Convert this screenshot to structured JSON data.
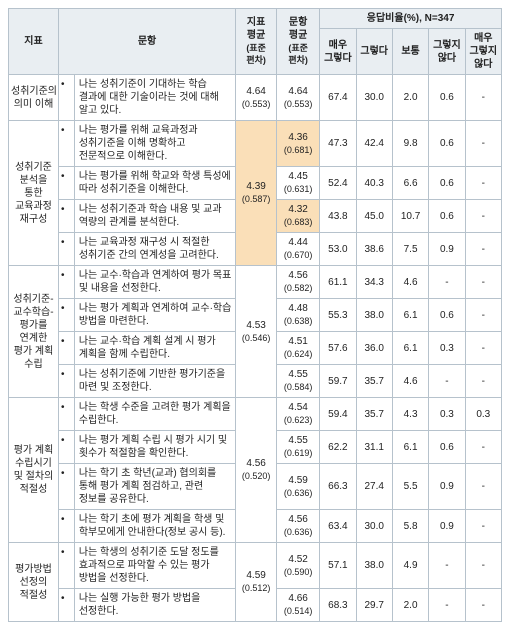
{
  "header": {
    "indicator": "지표",
    "question": "문항",
    "ind_avg_top": "지표",
    "ind_avg_mid": "평균",
    "q_avg_top": "문항",
    "q_avg_mid": "평균",
    "sd_note": "(표준 편차)",
    "resp_header": "응답비율(%), N=347",
    "r1": "매우 그렇다",
    "r2": "그렇다",
    "r3": "보통",
    "r4": "그렇지 않다",
    "r5": "매우 그렇지 않다"
  },
  "groups": [
    {
      "name": "성취기준의 의미 이해",
      "ind_avg": "4.64",
      "ind_sd": "(0.553)",
      "highlight": false,
      "rows": [
        {
          "q": "나는 성취기준이 기대하는 학습 결과에 대한 기술이라는 것에 대해 알고 있다.",
          "avg": "4.64",
          "sd": "(0.553)",
          "hl": false,
          "r": [
            "67.4",
            "30.0",
            "2.0",
            "0.6",
            "-"
          ]
        }
      ]
    },
    {
      "name": "성취기준 분석을 통한 교육과정 재구성",
      "ind_avg": "4.39",
      "ind_sd": "(0.587)",
      "highlight": true,
      "rows": [
        {
          "q": "나는 평가를 위해 교육과정과 성취기준을 이해 명확하고 전문적으로 이해한다.",
          "avg": "4.36",
          "sd": "(0.681)",
          "hl": true,
          "r": [
            "47.3",
            "42.4",
            "9.8",
            "0.6",
            "-"
          ]
        },
        {
          "q": "나는 평가를 위해 학교와 학생 특성에 따라 성취기준을 이해한다.",
          "avg": "4.45",
          "sd": "(0.631)",
          "hl": false,
          "r": [
            "52.4",
            "40.3",
            "6.6",
            "0.6",
            "-"
          ]
        },
        {
          "q": "나는 성취기준과 학습 내용 및 교과 역량의 관계를 분석한다.",
          "avg": "4.32",
          "sd": "(0.683)",
          "hl": true,
          "r": [
            "43.8",
            "45.0",
            "10.7",
            "0.6",
            "-"
          ]
        },
        {
          "q": "나는 교육과정 재구성 시 적절한 성취기준 간의 연계성을 고려한다.",
          "avg": "4.44",
          "sd": "(0.670)",
          "hl": false,
          "r": [
            "53.0",
            "38.6",
            "7.5",
            "0.9",
            "-"
          ]
        }
      ]
    },
    {
      "name": "성취기준-교수학습-평가를 연계한 평가 계획 수립",
      "ind_avg": "4.53",
      "ind_sd": "(0.546)",
      "highlight": false,
      "rows": [
        {
          "q": "나는 교수·학습과 연계하여 평가 목표 및 내용을 선정한다.",
          "avg": "4.56",
          "sd": "(0.582)",
          "hl": false,
          "r": [
            "61.1",
            "34.3",
            "4.6",
            "-",
            "-"
          ]
        },
        {
          "q": "나는 평가 계획과 연계하여 교수·학습 방법을 마련한다.",
          "avg": "4.48",
          "sd": "(0.638)",
          "hl": false,
          "r": [
            "55.3",
            "38.0",
            "6.1",
            "0.6",
            "-"
          ]
        },
        {
          "q": "나는 교수·학습 계획 설계 시 평가 계획을 함께 수립한다.",
          "avg": "4.51",
          "sd": "(0.624)",
          "hl": false,
          "r": [
            "57.6",
            "36.0",
            "6.1",
            "0.3",
            "-"
          ]
        },
        {
          "q": "나는 성취기준에 기반한 평가기준을 마련 및 조정한다.",
          "avg": "4.55",
          "sd": "(0.584)",
          "hl": false,
          "r": [
            "59.7",
            "35.7",
            "4.6",
            "-",
            "-"
          ]
        }
      ]
    },
    {
      "name": "평가 계획 수립시기 및 절차의 적절성",
      "ind_avg": "4.56",
      "ind_sd": "(0.520)",
      "highlight": false,
      "rows": [
        {
          "q": "나는 학생 수준을 고려한 평가 계획을 수립한다.",
          "avg": "4.54",
          "sd": "(0.623)",
          "hl": false,
          "r": [
            "59.4",
            "35.7",
            "4.3",
            "0.3",
            "0.3"
          ]
        },
        {
          "q": "나는 평가 계획 수립 시 평가 시기 및 횟수가 적절함을 확인한다.",
          "avg": "4.55",
          "sd": "(0.619)",
          "hl": false,
          "r": [
            "62.2",
            "31.1",
            "6.1",
            "0.6",
            "-"
          ]
        },
        {
          "q": "나는 학기 초 학년(교과) 협의회를 통해 평가 계획 점검하고, 관련 정보를 공유한다.",
          "avg": "4.59",
          "sd": "(0.636)",
          "hl": false,
          "r": [
            "66.3",
            "27.4",
            "5.5",
            "0.9",
            "-"
          ]
        },
        {
          "q": "나는 학기 초에 평가 계획을 학생 및 학부모에게 안내한다(정보 공시 등).",
          "avg": "4.56",
          "sd": "(0.636)",
          "hl": false,
          "r": [
            "63.4",
            "30.0",
            "5.8",
            "0.9",
            "-"
          ]
        }
      ]
    },
    {
      "name": "평가방법 선정의 적절성",
      "ind_avg": "4.59",
      "ind_sd": "(0.512)",
      "highlight": false,
      "rows": [
        {
          "q": "나는 학생의 성취기준 도달 정도를 효과적으로 파악할 수 있는 평가 방법을 선정한다.",
          "avg": "4.52",
          "sd": "(0.590)",
          "hl": false,
          "r": [
            "57.1",
            "38.0",
            "4.9",
            "-",
            "-"
          ]
        },
        {
          "q": "나는 실행 가능한 평가 방법을 선정한다.",
          "avg": "4.66",
          "sd": "(0.514)",
          "hl": false,
          "r": [
            "68.3",
            "29.7",
            "2.0",
            "-",
            "-"
          ]
        }
      ]
    }
  ]
}
